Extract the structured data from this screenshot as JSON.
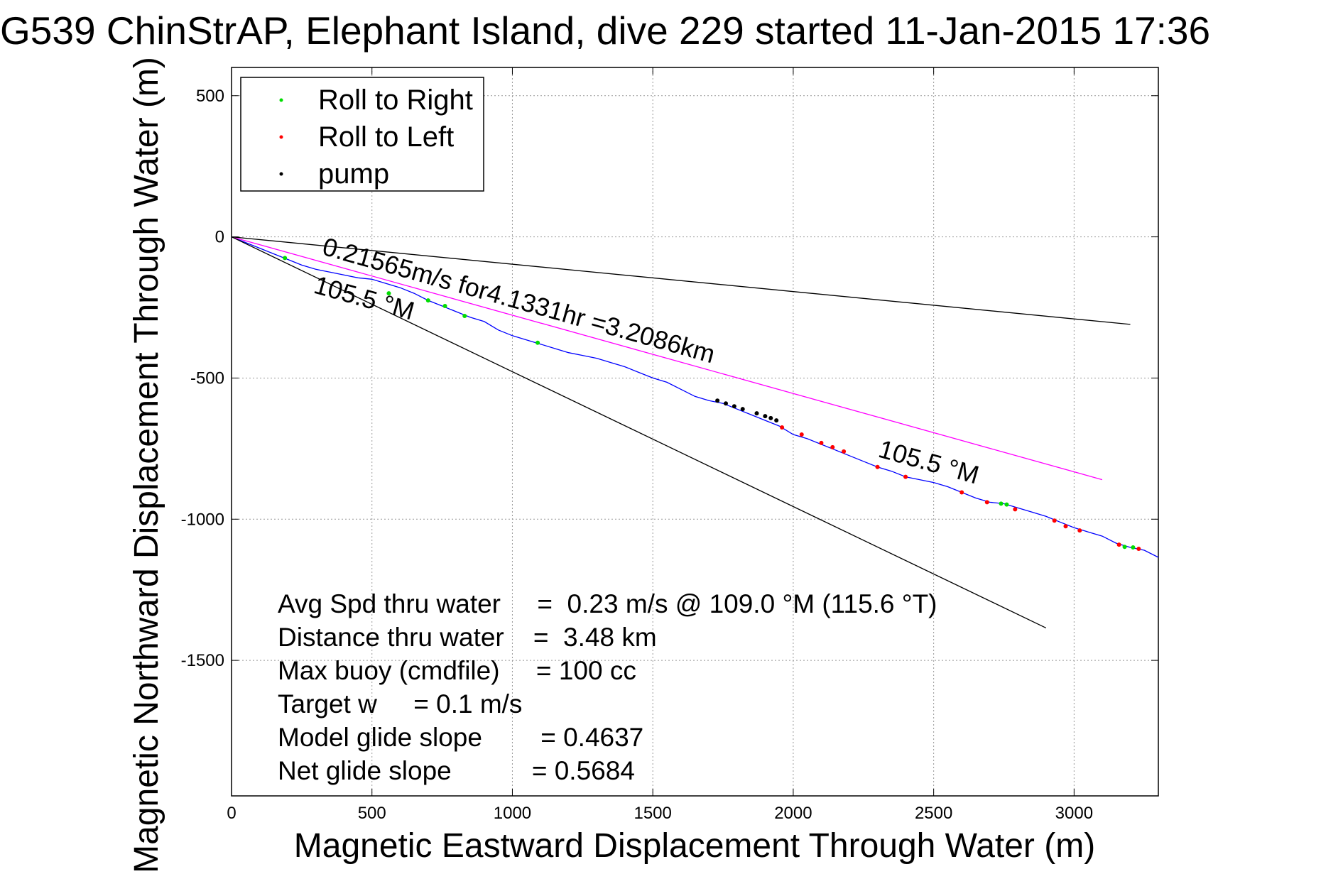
{
  "title": "G539 ChinStrAP, Elephant Island, dive 229 started 11-Jan-2015 17:36",
  "chart_data": {
    "type": "line",
    "xlabel": "Magnetic Eastward Displacement Through Water (m)",
    "ylabel": "Magnetic Northward Displacement Through Water (m)",
    "xlim": [
      0,
      3300
    ],
    "ylim": [
      -1980,
      600
    ],
    "xticks": [
      0,
      500,
      1000,
      1500,
      2000,
      2500,
      3000
    ],
    "xtick_labels": [
      "0",
      "500",
      "1000",
      "1500",
      "2000",
      "2500",
      "3000"
    ],
    "yticks": [
      500,
      0,
      -500,
      -1000,
      -1500
    ],
    "ytick_labels": [
      "500",
      "0",
      "-500",
      "-1000",
      "-1500"
    ],
    "grid": true,
    "legend_position": "top-left",
    "legend": [
      {
        "label": "Roll to Right",
        "color": "#00dd00"
      },
      {
        "label": "Roll to Left",
        "color": "#ff0000"
      },
      {
        "label": "pump",
        "color": "#000000"
      }
    ],
    "series": [
      {
        "name": "track",
        "color": "#0000ff",
        "x": [
          0,
          50,
          100,
          150,
          200,
          250,
          300,
          350,
          400,
          450,
          500,
          550,
          600,
          650,
          700,
          750,
          800,
          850,
          900,
          950,
          1000,
          1050,
          1100,
          1150,
          1200,
          1250,
          1300,
          1350,
          1400,
          1450,
          1500,
          1550,
          1600,
          1650,
          1700,
          1750,
          1800,
          1850,
          1900,
          1950,
          2000,
          2050,
          2100,
          2150,
          2200,
          2250,
          2300,
          2350,
          2400,
          2450,
          2500,
          2550,
          2600,
          2650,
          2700,
          2750,
          2800,
          2850,
          2900,
          2950,
          3000,
          3050,
          3100,
          3150,
          3200,
          3250,
          3300
        ],
        "y": [
          0,
          -20,
          -40,
          -60,
          -80,
          -100,
          -115,
          -125,
          -135,
          -145,
          -150,
          -165,
          -180,
          -200,
          -225,
          -245,
          -265,
          -285,
          -300,
          -330,
          -350,
          -365,
          -380,
          -395,
          -410,
          -420,
          -430,
          -445,
          -460,
          -480,
          -500,
          -515,
          -540,
          -565,
          -580,
          -590,
          -610,
          -630,
          -650,
          -670,
          -700,
          -715,
          -735,
          -755,
          -775,
          -795,
          -815,
          -830,
          -850,
          -860,
          -870,
          -885,
          -905,
          -925,
          -940,
          -945,
          -960,
          -975,
          -990,
          -1010,
          -1030,
          -1045,
          -1060,
          -1085,
          -1100,
          -1110,
          -1135
        ]
      },
      {
        "name": "105.5 °M line",
        "color": "#ff00ff",
        "x": [
          0,
          3100
        ],
        "y": [
          0,
          -860
        ]
      },
      {
        "name": "upper reference",
        "color": "#000000",
        "x": [
          0,
          3200
        ],
        "y": [
          0,
          -310
        ]
      },
      {
        "name": "lower reference",
        "color": "#000000",
        "x": [
          0,
          2900
        ],
        "y": [
          0,
          -1385
        ]
      }
    ],
    "roll_right_points": {
      "x": [
        190,
        560,
        700,
        760,
        830,
        1090,
        2740,
        2760,
        3180,
        3210
      ],
      "y": [
        -75,
        -200,
        -225,
        -245,
        -280,
        -375,
        -945,
        -948,
        -1098,
        -1100
      ]
    },
    "roll_left_points": {
      "x": [
        1960,
        2030,
        2100,
        2140,
        2180,
        2300,
        2400,
        2600,
        2690,
        2790,
        2930,
        2970,
        3020,
        3160,
        3230
      ],
      "y": [
        -675,
        -700,
        -730,
        -745,
        -760,
        -815,
        -850,
        -905,
        -940,
        -965,
        -1005,
        -1025,
        -1040,
        -1090,
        -1105
      ]
    },
    "pump_points": {
      "x": [
        1730,
        1760,
        1790,
        1820,
        1870,
        1900,
        1920,
        1940
      ],
      "y": [
        -580,
        -590,
        -600,
        -610,
        -625,
        -635,
        -642,
        -650
      ]
    },
    "annotations": {
      "speed_label": "0.21565m/s for4.1331hr =3.2086km",
      "heading_label_1": "105.5 °M",
      "heading_label_2": "105.5 °M"
    },
    "stats": [
      "Avg Spd thru water     =  0.23 m/s @ 109.0 °M (115.6 °T)",
      "Distance thru water    =  3.48 km",
      "Max buoy (cmdfile)     = 100 cc",
      "Target w     = 0.1 m/s",
      "Model glide slope        = 0.4637",
      "Net glide slope           = 0.5684"
    ]
  }
}
